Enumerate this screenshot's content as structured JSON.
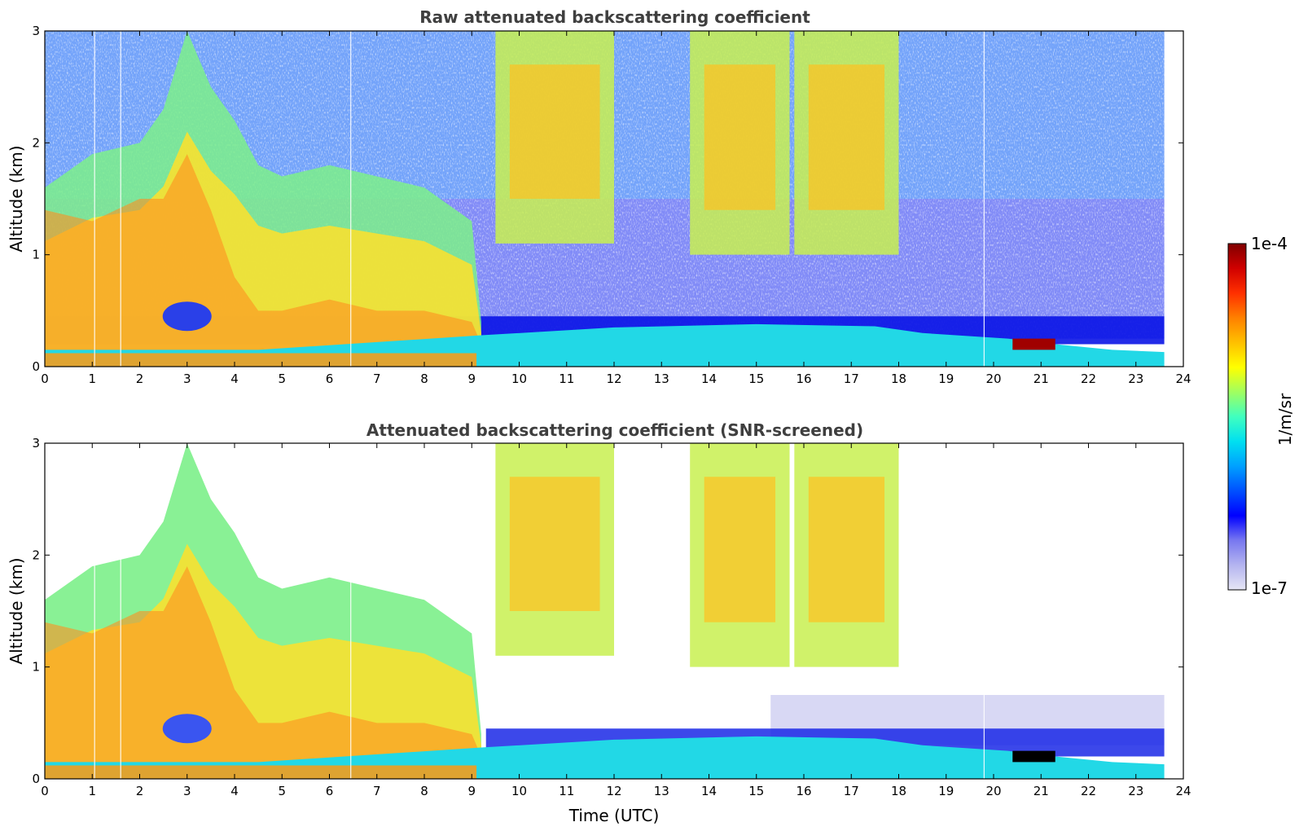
{
  "chart_data": [
    {
      "type": "heatmap",
      "title": "Raw attenuated backscattering coefficient",
      "xlabel": "",
      "ylabel": "Altitude (km)",
      "xlim": [
        0,
        24
      ],
      "ylim": [
        0,
        3
      ],
      "x_ticks": [
        "0",
        "1",
        "2",
        "3",
        "4",
        "5",
        "6",
        "7",
        "8",
        "9",
        "10",
        "11",
        "12",
        "13",
        "14",
        "15",
        "16",
        "17",
        "18",
        "19",
        "20",
        "21",
        "22",
        "23",
        "24"
      ],
      "y_ticks": [
        "0",
        "1",
        "2",
        "3"
      ],
      "data_end_time": 23.6,
      "surface_layer": {
        "x": [
          0,
          4.5,
          9.2,
          12,
          15,
          17.5,
          18.5,
          20.3,
          21.3,
          22.5,
          23.6
        ],
        "top_km": [
          0.15,
          0.15,
          0.28,
          0.35,
          0.38,
          0.36,
          0.3,
          0.25,
          0.2,
          0.15,
          0.13
        ]
      },
      "aerosol_layer": {
        "x": [
          0,
          1,
          2,
          2.5,
          3,
          3.5,
          4,
          4.5,
          5,
          6,
          7,
          8,
          9,
          9.2
        ],
        "top_km": [
          1.6,
          1.9,
          2.0,
          2.3,
          3.0,
          2.5,
          2.2,
          1.8,
          1.7,
          1.8,
          1.7,
          1.6,
          1.3,
          0.4
        ]
      },
      "cloud_features": [
        {
          "x": [
            9.5,
            12.0
          ],
          "base_km": 1.1,
          "top_km": 3.0
        },
        {
          "x": [
            13.6,
            15.7
          ],
          "base_km": 1.0,
          "top_km": 3.0
        },
        {
          "x": [
            15.8,
            18.0
          ],
          "base_km": 1.0,
          "top_km": 3.0
        }
      ],
      "max_signal": {
        "x": [
          20.4,
          21.3
        ],
        "alt_km": 0.2
      }
    },
    {
      "type": "heatmap",
      "title": "Attenuated backscattering coefficient (SNR-screened)",
      "xlabel": "Time (UTC)",
      "ylabel": "Altitude (km)",
      "xlim": [
        0,
        24
      ],
      "ylim": [
        0,
        3
      ],
      "x_ticks": [
        "0",
        "1",
        "2",
        "3",
        "4",
        "5",
        "6",
        "7",
        "8",
        "9",
        "10",
        "11",
        "12",
        "13",
        "14",
        "15",
        "16",
        "17",
        "18",
        "19",
        "20",
        "21",
        "22",
        "23",
        "24"
      ],
      "y_ticks": [
        "0",
        "1",
        "2",
        "3"
      ],
      "screening": "SNR",
      "data_end_time": 23.6
    }
  ],
  "colorbar": {
    "label": "1/m/sr",
    "max_label": "1e-4",
    "min_label": "1e-7",
    "scale": "log",
    "colormap": "jet",
    "colors": [
      "#e6e6f5",
      "#b4b4f0",
      "#7878f0",
      "#0000ff",
      "#0050ff",
      "#00a0ff",
      "#00e0f0",
      "#40ffbf",
      "#a0ff60",
      "#ffff00",
      "#ffc000",
      "#ff8000",
      "#ff3000",
      "#d00000",
      "#800000"
    ]
  }
}
